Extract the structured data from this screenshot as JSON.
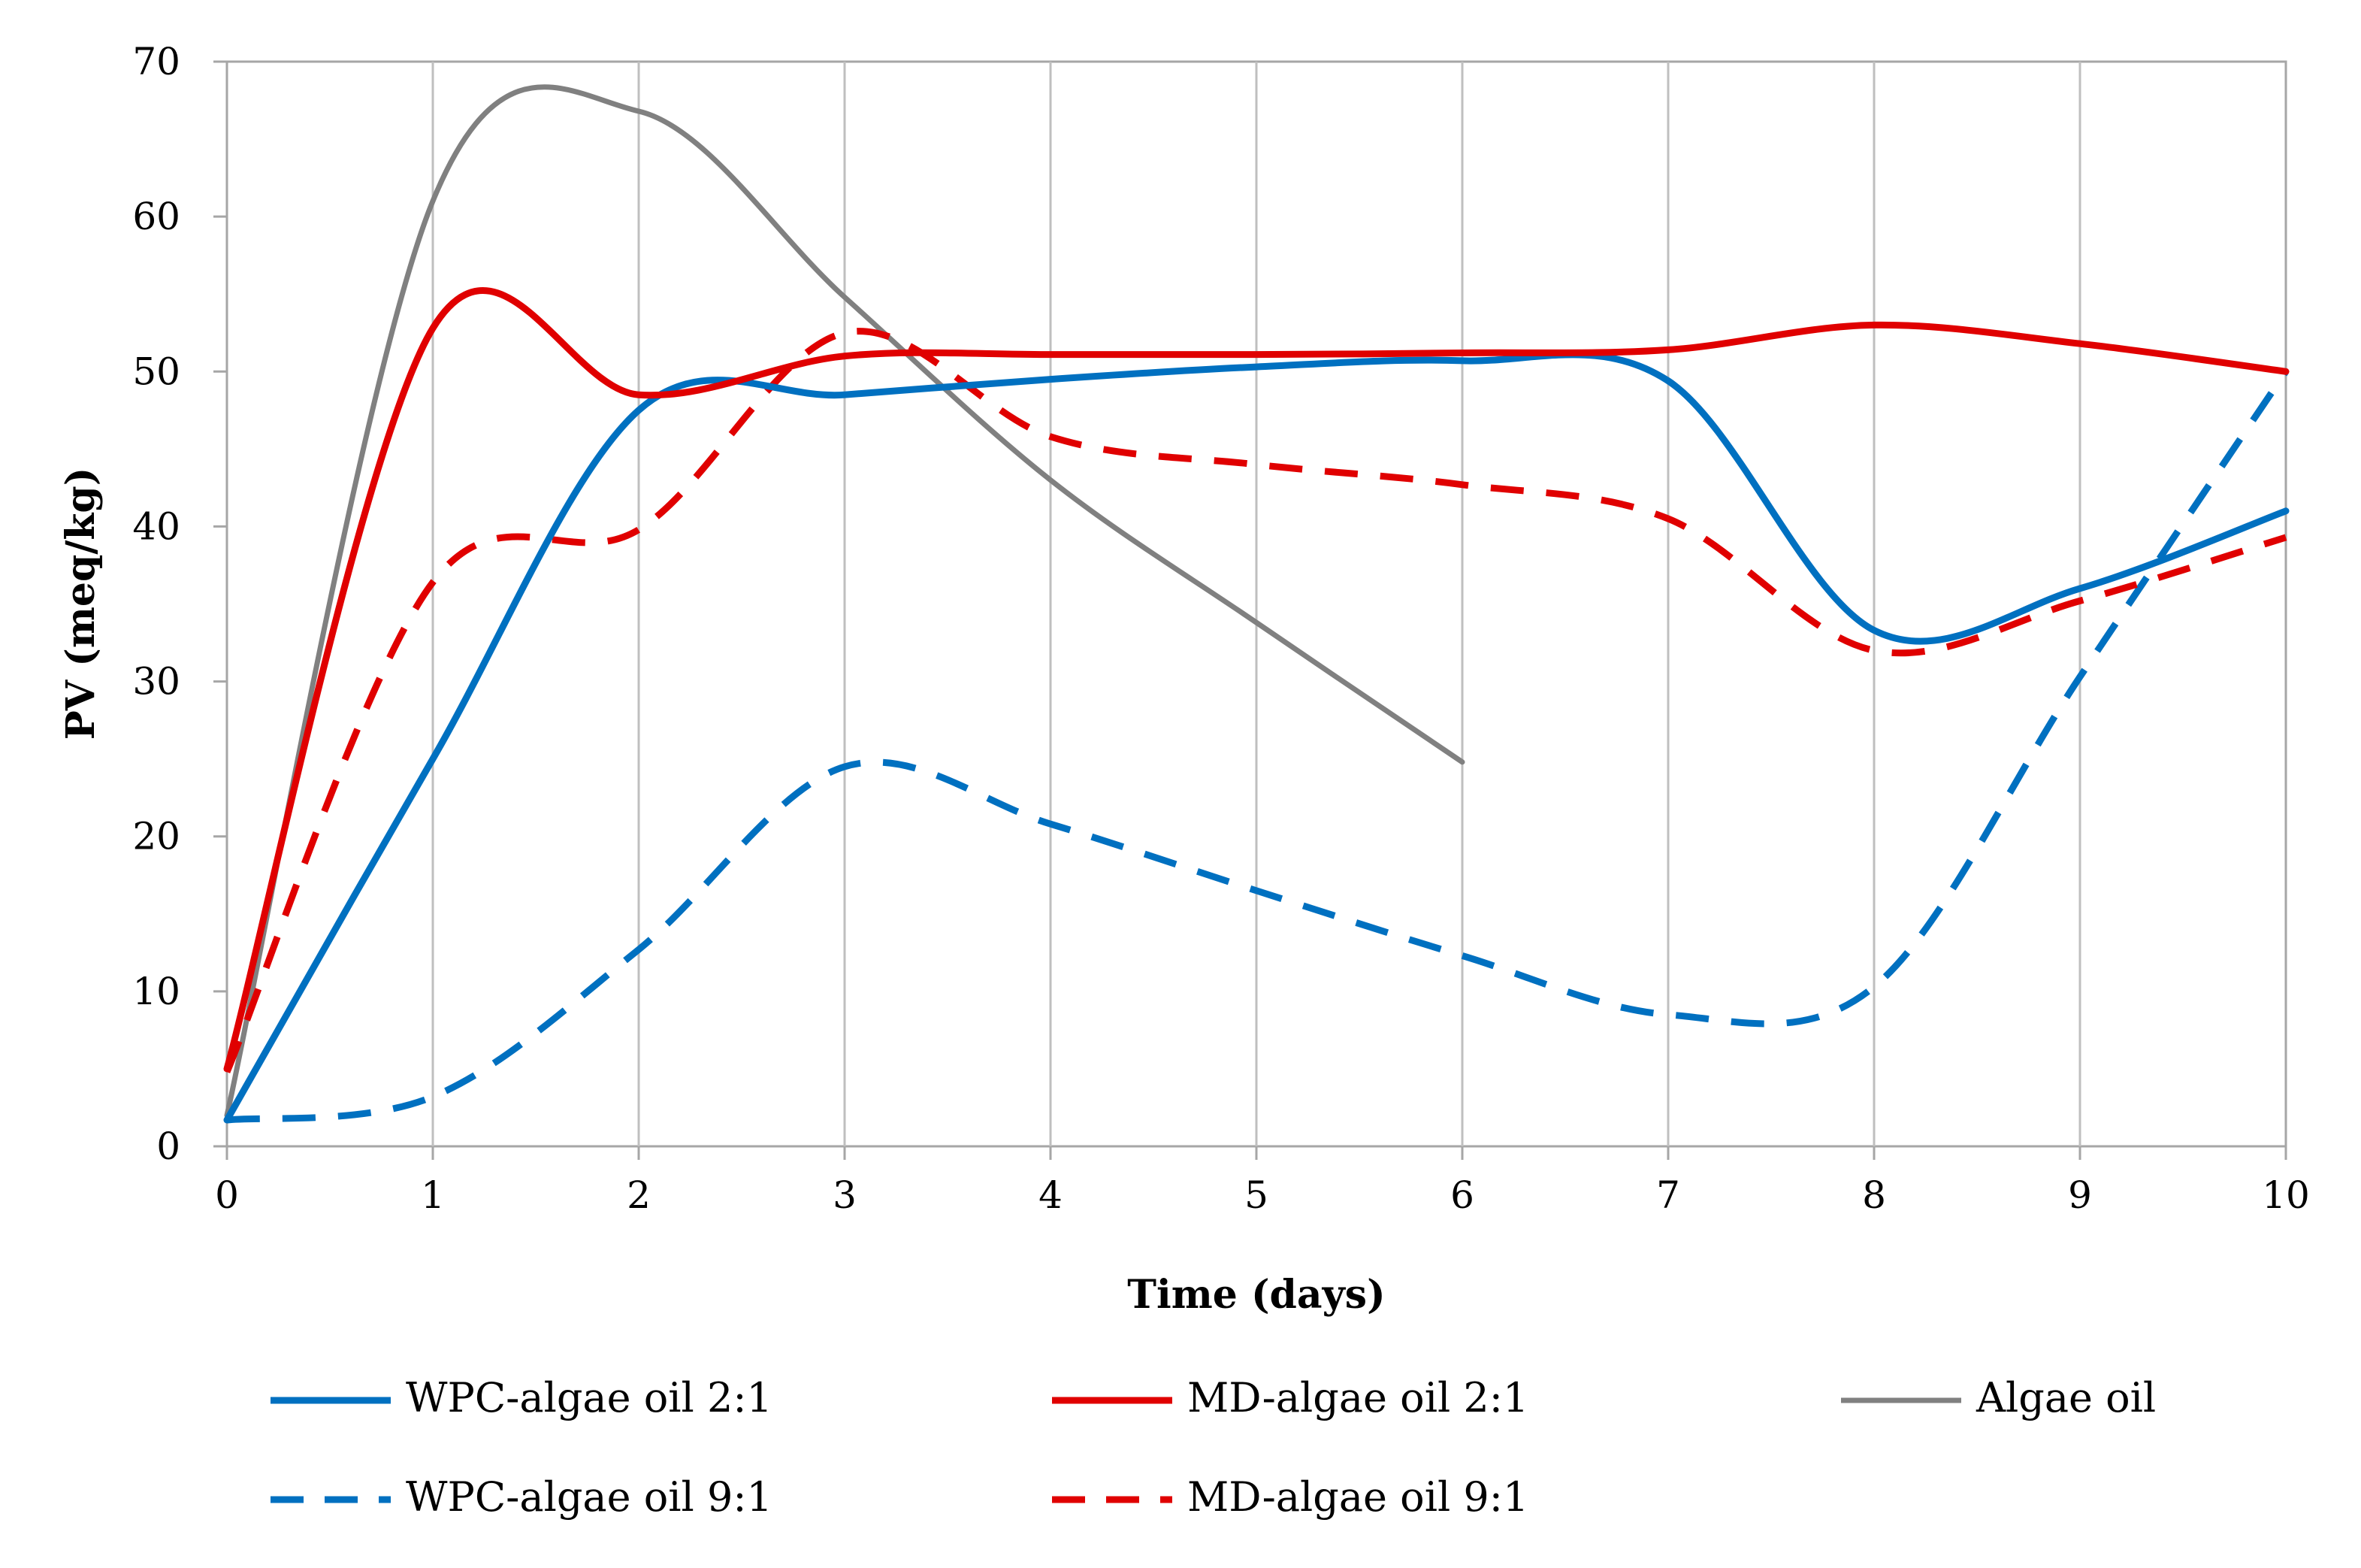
{
  "chart_data": {
    "type": "line",
    "title": "",
    "xlabel": "Time (days)",
    "ylabel": "PV (meq/kg)",
    "xlim": [
      0,
      10
    ],
    "ylim": [
      0,
      70
    ],
    "x_ticks": [
      "0",
      "1",
      "2",
      "3",
      "4",
      "5",
      "6",
      "7",
      "8",
      "9",
      "10"
    ],
    "y_ticks": [
      "0",
      "10",
      "20",
      "30",
      "40",
      "50",
      "60",
      "70"
    ],
    "grid": "x-only",
    "legend_position": "bottom",
    "x": [
      0,
      1,
      2,
      3,
      4,
      5,
      6,
      7,
      8,
      9,
      10
    ],
    "series": [
      {
        "name": "WPC-algae oil 2:1",
        "color": "#0070c0",
        "dash": "solid",
        "values": [
          1.7,
          25,
          47.5,
          48.5,
          49.5,
          50.3,
          50.7,
          49.4,
          33.3,
          36,
          41
        ]
      },
      {
        "name": "MD-algae oil 2:1",
        "color": "#e00000",
        "dash": "solid",
        "values": [
          5,
          52.8,
          48.5,
          51,
          51.1,
          51.1,
          51.2,
          51.4,
          53,
          51.8,
          50
        ]
      },
      {
        "name": "Algae oil",
        "color": "#808080",
        "dash": "solid",
        "values": [
          2,
          61,
          66.8,
          54.8,
          43,
          33.8,
          24.8,
          null,
          null,
          null,
          null
        ]
      },
      {
        "name": "WPC-algae oil 9:1",
        "color": "#0070c0",
        "dash": "dashed",
        "values": [
          1.7,
          3.2,
          12.7,
          24.5,
          20.8,
          16.5,
          12.3,
          8.5,
          10.3,
          30.3,
          50
        ]
      },
      {
        "name": "MD-algae oil 9:1",
        "color": "#e00000",
        "dash": "dashed",
        "values": [
          4.8,
          36.4,
          39.8,
          52.5,
          45.8,
          44,
          42.7,
          40.5,
          32,
          35.2,
          39.3
        ]
      }
    ]
  }
}
